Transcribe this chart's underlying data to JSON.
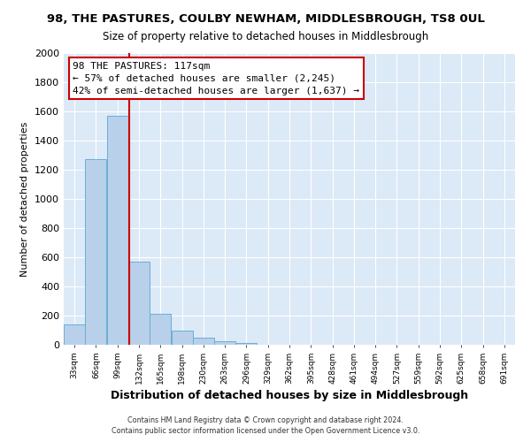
{
  "title1": "98, THE PASTURES, COULBY NEWHAM, MIDDLESBROUGH, TS8 0UL",
  "title2": "Size of property relative to detached houses in Middlesbrough",
  "xlabel": "Distribution of detached houses by size in Middlesbrough",
  "ylabel": "Number of detached properties",
  "tick_labels": [
    "33sqm",
    "66sqm",
    "99sqm",
    "132sqm",
    "165sqm",
    "198sqm",
    "230sqm",
    "263sqm",
    "296sqm",
    "329sqm",
    "362sqm",
    "395sqm",
    "428sqm",
    "461sqm",
    "494sqm",
    "527sqm",
    "559sqm",
    "592sqm",
    "625sqm",
    "658sqm",
    "691sqm"
  ],
  "bin_edges": [
    16.5,
    49.5,
    82.5,
    115.5,
    148.5,
    181.5,
    214.5,
    247.5,
    280.5,
    313.5,
    346.5,
    379.5,
    412.5,
    445.5,
    478.5,
    511.5,
    544.5,
    577.5,
    610.5,
    643.5,
    676.5,
    709.5
  ],
  "bar_heights": [
    140,
    1270,
    1570,
    570,
    215,
    95,
    50,
    25,
    10,
    0,
    0,
    0,
    0,
    0,
    0,
    0,
    0,
    0,
    0,
    0,
    0
  ],
  "bar_color": "#b8d0ea",
  "bar_edge_color": "#6baed6",
  "vline_x": 117,
  "vline_color": "#cc0000",
  "ylim": [
    0,
    2000
  ],
  "yticks": [
    0,
    200,
    400,
    600,
    800,
    1000,
    1200,
    1400,
    1600,
    1800,
    2000
  ],
  "annotation_title": "98 THE PASTURES: 117sqm",
  "annotation_line1": "← 57% of detached houses are smaller (2,245)",
  "annotation_line2": "42% of semi-detached houses are larger (1,637) →",
  "annotation_box_edge": "#cc0000",
  "footer1": "Contains HM Land Registry data © Crown copyright and database right 2024.",
  "footer2": "Contains public sector information licensed under the Open Government Licence v3.0.",
  "fig_bg_color": "#ffffff",
  "plot_bg_color": "#dce9f7"
}
